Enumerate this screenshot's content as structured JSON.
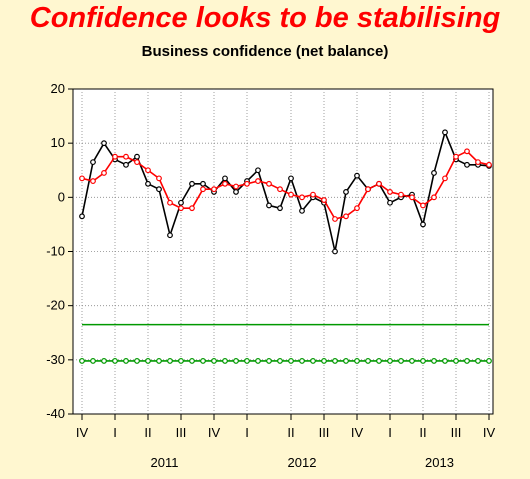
{
  "headline": {
    "text": "Confidence looks to be stabilising",
    "color": "#ff0000"
  },
  "chart_data": {
    "type": "line",
    "title": "Business confidence (net balance)",
    "ylim": [
      -40,
      20
    ],
    "yticks": [
      20,
      10,
      0,
      -10,
      -20,
      -30,
      -40
    ],
    "x_quarter_labels": [
      "IV",
      "I",
      "II",
      "III",
      "IV",
      "I",
      "II",
      "III",
      "IV",
      "I",
      "II",
      "III",
      "IV"
    ],
    "year_labels": [
      "2011",
      "2012",
      "2013"
    ],
    "grid": true,
    "series": [
      {
        "color": "#000000",
        "markers": true,
        "values": [
          -3.5,
          6.5,
          10,
          7,
          6,
          7.5,
          2.5,
          1.5,
          -7,
          -1,
          2.5,
          2.5,
          1,
          3.5,
          1,
          3,
          5,
          -1.5,
          -2,
          3.5,
          -2.5,
          0,
          -1,
          -10,
          1,
          4,
          1.5,
          2.5,
          -1,
          0,
          0.5,
          -5,
          4.5,
          12,
          7,
          6,
          6,
          5.8
        ]
      },
      {
        "color": "#ff0000",
        "markers": true,
        "values": [
          3.5,
          3,
          4.5,
          7.5,
          7.5,
          6.5,
          5,
          3.5,
          -1,
          -2,
          -2,
          1.5,
          1.5,
          2.5,
          2,
          2.5,
          3,
          2.5,
          1.5,
          0.5,
          0,
          0.5,
          -0.5,
          -4,
          -3.5,
          -2,
          1.5,
          2.5,
          1,
          0.5,
          0,
          -1.5,
          0,
          3.5,
          7.5,
          8.5,
          6.5,
          6
        ]
      },
      {
        "color": "#009900",
        "markers": false,
        "values": [
          -23.5,
          -23.5
        ]
      },
      {
        "color": "#009900",
        "markers": true,
        "values": [
          -30.2,
          -30.2,
          -30.2,
          -30.2,
          -30.2,
          -30.2,
          -30.2,
          -30.2,
          -30.2,
          -30.2,
          -30.2,
          -30.2,
          -30.2,
          -30.2,
          -30.2,
          -30.2,
          -30.2,
          -30.2,
          -30.2,
          -30.2,
          -30.2,
          -30.2,
          -30.2,
          -30.2,
          -30.2,
          -30.2,
          -30.2,
          -30.2,
          -30.2,
          -30.2,
          -30.2,
          -30.2,
          -30.2,
          -30.2,
          -30.2,
          -30.2,
          -30.2,
          -30.2
        ]
      }
    ]
  }
}
